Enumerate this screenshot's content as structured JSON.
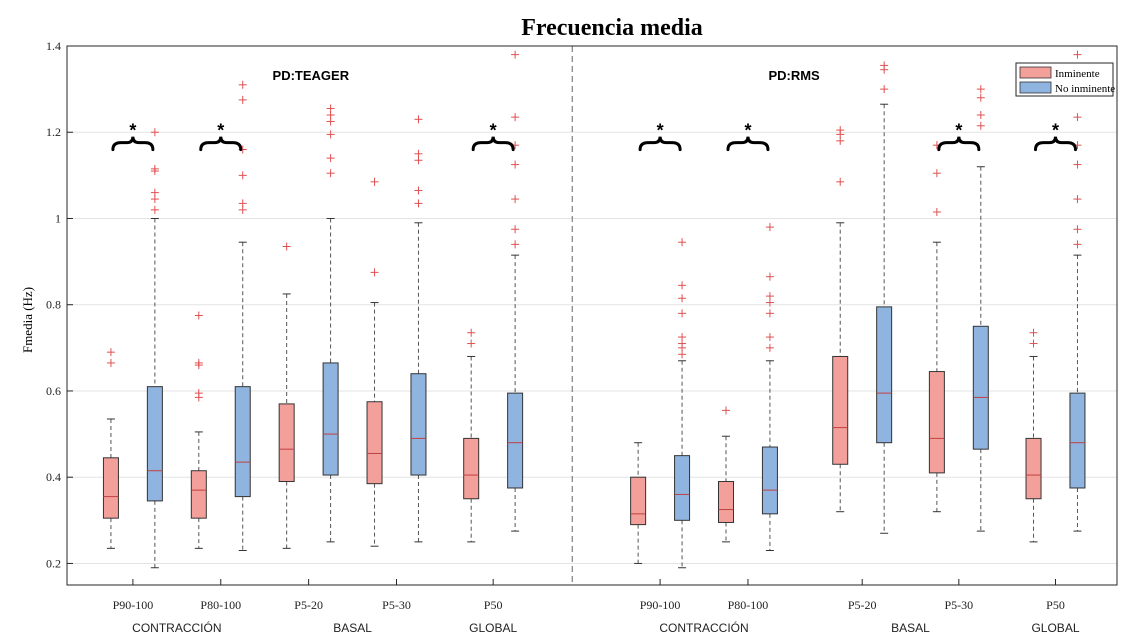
{
  "chart_data": {
    "type": "boxplot",
    "title": "Frecuencia media",
    "ylabel": "Fmedia (Hz)",
    "ylim": [
      0.15,
      1.4
    ],
    "yticks": [
      0.2,
      0.4,
      0.6,
      0.8,
      1,
      1.2,
      1.4
    ],
    "ytick_labels": [
      "0.2",
      "0.4",
      "0.6",
      "0.8",
      "1",
      "1.2",
      "1.4"
    ],
    "grid": true,
    "legend": {
      "position": "top-right",
      "entries": [
        "Inminente",
        "No inminente"
      ]
    },
    "colors": {
      "Inminente": "#f4a09a",
      "No inminente": "#8fb4e0",
      "outlier": "#e05050",
      "median": "#c04040"
    },
    "panels": [
      {
        "title": "PD:TEAGER",
        "x": [
          1,
          5.5
        ]
      },
      {
        "title": "PD:RMS",
        "x": [
          6.5,
          11
        ]
      }
    ],
    "categories": [
      {
        "label": "P90-100",
        "group": "CONTRACCIÓN",
        "x": 1
      },
      {
        "label": "P80-100",
        "group": "CONTRACCIÓN",
        "x": 2
      },
      {
        "label": "P5-20",
        "group": "BASAL",
        "x": 3
      },
      {
        "label": "P5-30",
        "group": "BASAL",
        "x": 4
      },
      {
        "label": "P50",
        "group": "GLOBAL",
        "x": 5.1
      },
      {
        "label": "P90-100",
        "group": "CONTRACCIÓN",
        "x": 7
      },
      {
        "label": "P80-100",
        "group": "CONTRACCIÓN",
        "x": 8
      },
      {
        "label": "P5-20",
        "group": "BASAL",
        "x": 9.3
      },
      {
        "label": "P5-30",
        "group": "BASAL",
        "x": 10.4
      },
      {
        "label": "P50",
        "group": "GLOBAL",
        "x": 11.5
      }
    ],
    "group_labels": [
      {
        "label": "CONTRACCIÓN",
        "x": 1.5
      },
      {
        "label": "BASAL",
        "x": 3.5
      },
      {
        "label": "GLOBAL",
        "x": 5.1
      },
      {
        "label": "CONTRACCIÓN",
        "x": 7.5
      },
      {
        "label": "BASAL",
        "x": 9.85
      },
      {
        "label": "GLOBAL",
        "x": 11.5
      }
    ],
    "significance": [
      1,
      2,
      5.1,
      7,
      8,
      10.4,
      11.5
    ],
    "significance_label": "*",
    "series": [
      {
        "name": "Inminente",
        "boxes": [
          {
            "whislo": 0.235,
            "q1": 0.305,
            "med": 0.355,
            "q3": 0.445,
            "whishi": 0.535,
            "fliers": [
              0.665,
              0.69
            ]
          },
          {
            "whislo": 0.235,
            "q1": 0.305,
            "med": 0.37,
            "q3": 0.415,
            "whishi": 0.505,
            "fliers": [
              0.585,
              0.595,
              0.66,
              0.665,
              0.775
            ]
          },
          {
            "whislo": 0.235,
            "q1": 0.39,
            "med": 0.465,
            "q3": 0.57,
            "whishi": 0.825,
            "fliers": [
              0.935
            ]
          },
          {
            "whislo": 0.24,
            "q1": 0.385,
            "med": 0.455,
            "q3": 0.575,
            "whishi": 0.805,
            "fliers": [
              0.875,
              1.085
            ]
          },
          {
            "whislo": 0.25,
            "q1": 0.35,
            "med": 0.405,
            "q3": 0.49,
            "whishi": 0.68,
            "fliers": [
              0.71,
              0.735
            ]
          },
          {
            "whislo": 0.2,
            "q1": 0.29,
            "med": 0.315,
            "q3": 0.4,
            "whishi": 0.48,
            "fliers": []
          },
          {
            "whislo": 0.25,
            "q1": 0.295,
            "med": 0.325,
            "q3": 0.39,
            "whishi": 0.495,
            "fliers": [
              0.555
            ]
          },
          {
            "whislo": 0.32,
            "q1": 0.43,
            "med": 0.515,
            "q3": 0.68,
            "whishi": 0.99,
            "fliers": [
              1.085,
              1.18,
              1.195,
              1.205
            ]
          },
          {
            "whislo": 0.32,
            "q1": 0.41,
            "med": 0.49,
            "q3": 0.645,
            "whishi": 0.945,
            "fliers": [
              1.015,
              1.105,
              1.17
            ]
          },
          {
            "whislo": 0.25,
            "q1": 0.35,
            "med": 0.405,
            "q3": 0.49,
            "whishi": 0.68,
            "fliers": [
              0.71,
              0.735
            ]
          }
        ]
      },
      {
        "name": "No inminente",
        "boxes": [
          {
            "whislo": 0.19,
            "q1": 0.345,
            "med": 0.415,
            "q3": 0.61,
            "whishi": 1.0,
            "fliers": [
              1.02,
              1.045,
              1.06,
              1.11,
              1.115,
              1.2
            ]
          },
          {
            "whislo": 0.23,
            "q1": 0.355,
            "med": 0.435,
            "q3": 0.61,
            "whishi": 0.945,
            "fliers": [
              1.02,
              1.035,
              1.1,
              1.16,
              1.275,
              1.31
            ]
          },
          {
            "whislo": 0.25,
            "q1": 0.405,
            "med": 0.5,
            "q3": 0.665,
            "whishi": 1.0,
            "fliers": [
              1.105,
              1.14,
              1.195,
              1.225,
              1.24,
              1.255
            ]
          },
          {
            "whislo": 0.25,
            "q1": 0.405,
            "med": 0.49,
            "q3": 0.64,
            "whishi": 0.99,
            "fliers": [
              1.035,
              1.065,
              1.135,
              1.15,
              1.23
            ]
          },
          {
            "whislo": 0.275,
            "q1": 0.375,
            "med": 0.48,
            "q3": 0.595,
            "whishi": 0.915,
            "fliers": [
              0.94,
              0.975,
              1.045,
              1.125,
              1.17,
              1.235,
              1.38
            ]
          },
          {
            "whislo": 0.19,
            "q1": 0.3,
            "med": 0.36,
            "q3": 0.45,
            "whishi": 0.67,
            "fliers": [
              0.685,
              0.7,
              0.71,
              0.725,
              0.78,
              0.815,
              0.845,
              0.945
            ]
          },
          {
            "whislo": 0.23,
            "q1": 0.315,
            "med": 0.37,
            "q3": 0.47,
            "whishi": 0.67,
            "fliers": [
              0.7,
              0.725,
              0.78,
              0.805,
              0.82,
              0.865,
              0.98
            ]
          },
          {
            "whislo": 0.27,
            "q1": 0.48,
            "med": 0.595,
            "q3": 0.795,
            "whishi": 1.265,
            "fliers": [
              1.3,
              1.345,
              1.355
            ]
          },
          {
            "whislo": 0.275,
            "q1": 0.465,
            "med": 0.585,
            "q3": 0.75,
            "whishi": 1.12,
            "fliers": [
              1.215,
              1.24,
              1.28,
              1.3
            ]
          },
          {
            "whislo": 0.275,
            "q1": 0.375,
            "med": 0.48,
            "q3": 0.595,
            "whishi": 0.915,
            "fliers": [
              0.94,
              0.975,
              1.045,
              1.125,
              1.17,
              1.235,
              1.38
            ]
          }
        ]
      }
    ]
  }
}
